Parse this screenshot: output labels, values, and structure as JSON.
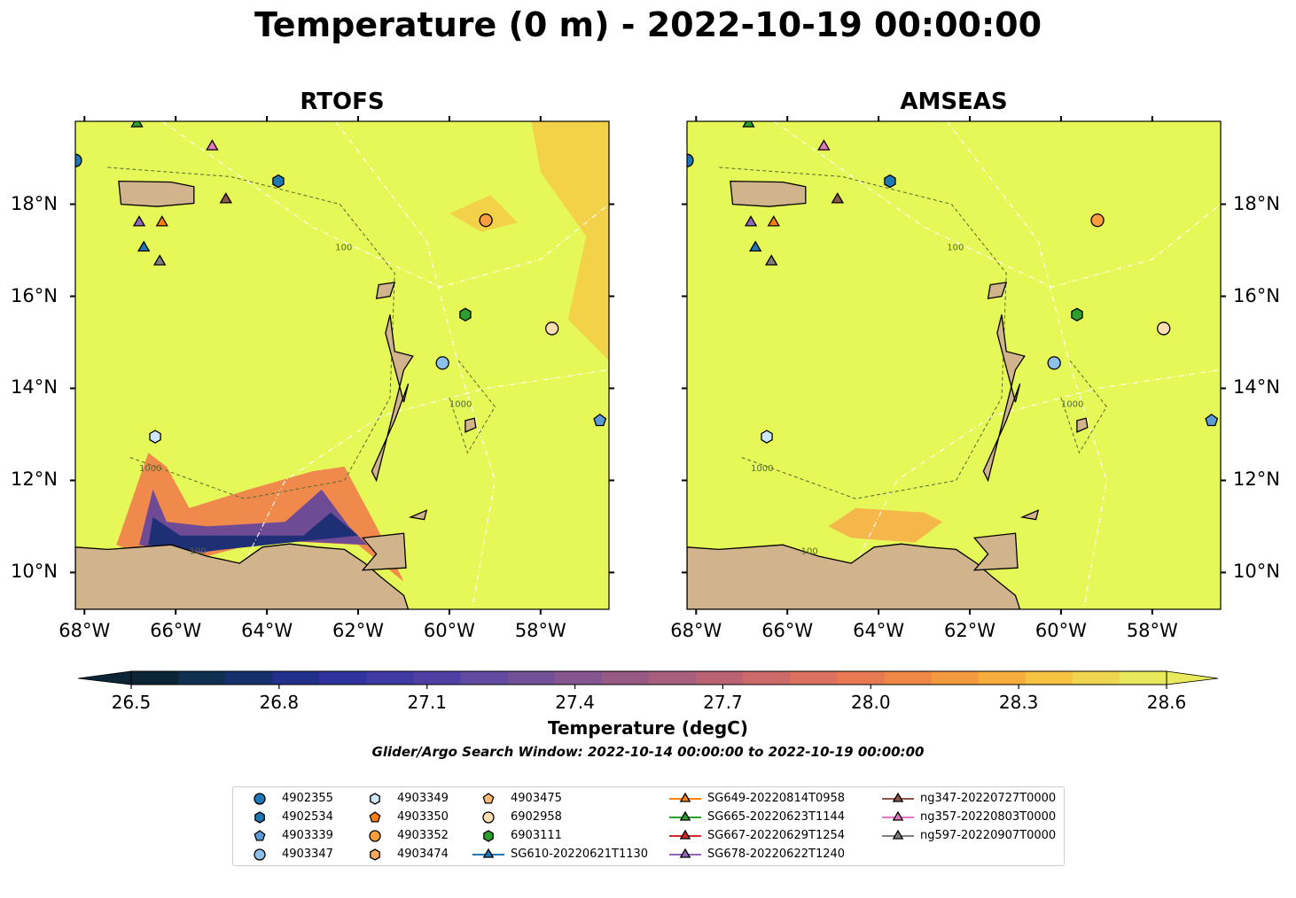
{
  "title": "Temperature (0 m) - 2022-10-19 00:00:00",
  "panels": [
    {
      "title": "RTOFS"
    },
    {
      "title": "AMSEAS"
    }
  ],
  "map": {
    "lon_range": [
      -68.2,
      -56.5
    ],
    "lat_range": [
      9.2,
      19.8
    ],
    "lon_ticks": [
      "68°W",
      "66°W",
      "64°W",
      "62°W",
      "60°W",
      "58°W"
    ],
    "lon_tick_values": [
      -68,
      -66,
      -64,
      -62,
      -60,
      -58
    ],
    "lat_ticks": [
      "18°N",
      "16°N",
      "14°N",
      "12°N",
      "10°N"
    ],
    "lat_tick_values": [
      18,
      16,
      14,
      12,
      10
    ],
    "contour_labels": [
      "100",
      "1000"
    ],
    "colors": {
      "ocean_base": "#e5f858",
      "land": "#d2b48c",
      "rtofs_warm_patch": "#f3d24a",
      "rtofs_cool_1": "#f08a4c",
      "rtofs_cool_2": "#6f4a95",
      "rtofs_cool_3": "#1f2f75",
      "amseas_patch": "#f6b74a"
    }
  },
  "colorbar": {
    "label": "Temperature (degC)",
    "ticks": [
      "26.5",
      "26.8",
      "27.1",
      "27.4",
      "27.7",
      "28.0",
      "28.3",
      "28.6"
    ],
    "tick_values": [
      26.5,
      26.8,
      27.1,
      27.4,
      27.7,
      28.0,
      28.3,
      28.6
    ],
    "range": [
      26.5,
      28.6
    ],
    "colors": [
      "#0b2436",
      "#10304f",
      "#162f6d",
      "#222f8b",
      "#30339d",
      "#403aa4",
      "#503fa4",
      "#614a9f",
      "#725198",
      "#84558e",
      "#965a85",
      "#a85f7e",
      "#bb6375",
      "#cc6a6a",
      "#db715e",
      "#e77a52",
      "#ef8846",
      "#f49a3e",
      "#f6ad3c",
      "#f5c242",
      "#f0d54e",
      "#e8e95d"
    ],
    "extend": "both"
  },
  "search_window": "Glider/Argo Search Window: 2022-10-14 00:00:00 to 2022-10-19 00:00:00",
  "observations": [
    {
      "id": "4902355",
      "lon": -68.2,
      "lat": 18.95
    },
    {
      "id": "4902534",
      "lon": -63.75,
      "lat": 18.5
    },
    {
      "id": "4903339",
      "lon": -56.7,
      "lat": 13.3
    },
    {
      "id": "4903347",
      "lon": -60.15,
      "lat": 14.55
    },
    {
      "id": "4903349",
      "lon": -66.45,
      "lat": 12.95
    },
    {
      "id": "4903352",
      "lon": -59.2,
      "lat": 17.65
    },
    {
      "id": "6902958",
      "lon": -57.75,
      "lat": 15.3
    },
    {
      "id": "6903111",
      "lon": -59.65,
      "lat": 15.6
    },
    {
      "id": "SG610-20220621T1130",
      "lon": -66.7,
      "lat": 17.05
    },
    {
      "id": "SG649-20220814T0958",
      "lon": -66.3,
      "lat": 17.6
    },
    {
      "id": "SG665-20220623T1144",
      "lon": -66.85,
      "lat": 19.75
    },
    {
      "id": "SG678-20220622T1240",
      "lon": -66.8,
      "lat": 17.6
    },
    {
      "id": "ng347-20220727T0000",
      "lon": -64.9,
      "lat": 18.1
    },
    {
      "id": "ng357-20220803T0000",
      "lon": -65.2,
      "lat": 19.25
    },
    {
      "id": "ng597-20220907T0000",
      "lon": -66.35,
      "lat": 16.75
    }
  ],
  "legend": [
    {
      "label": "4902355",
      "marker": "circle",
      "color": "#1f77b4"
    },
    {
      "label": "4902534",
      "marker": "hexagon",
      "color": "#1f77b4"
    },
    {
      "label": "4903339",
      "marker": "pentagon",
      "color": "#5b9bd5"
    },
    {
      "label": "4903347",
      "marker": "circle",
      "color": "#8ec1ea"
    },
    {
      "label": "4903349",
      "marker": "hexagon",
      "color": "#cfe7fb"
    },
    {
      "label": "4903350",
      "marker": "pentagon",
      "color": "#ff7f0e"
    },
    {
      "label": "4903352",
      "marker": "circle",
      "color": "#ff9e3d"
    },
    {
      "label": "4903474",
      "marker": "hexagon",
      "color": "#ffa860"
    },
    {
      "label": "4903475",
      "marker": "pentagon",
      "color": "#ffbb78"
    },
    {
      "label": "6902958",
      "marker": "circle",
      "color": "#ffddb0"
    },
    {
      "label": "6903111",
      "marker": "hexagon",
      "color": "#2ca02c"
    },
    {
      "label": "SG610-20220621T1130",
      "marker": "triangle-line",
      "color": "#1f77b4"
    },
    {
      "label": "SG649-20220814T0958",
      "marker": "triangle-line",
      "color": "#ff7f0e"
    },
    {
      "label": "SG665-20220623T1144",
      "marker": "triangle-line",
      "color": "#2ca02c"
    },
    {
      "label": "SG667-20220629T1254",
      "marker": "triangle-line",
      "color": "#d62728"
    },
    {
      "label": "SG678-20220622T1240",
      "marker": "triangle-line",
      "color": "#9467bd"
    },
    {
      "label": "ng347-20220727T0000",
      "marker": "triangle-line",
      "color": "#8c564b"
    },
    {
      "label": "ng357-20220803T0000",
      "marker": "triangle-line",
      "color": "#e377c2"
    },
    {
      "label": "ng597-20220907T0000",
      "marker": "triangle-line",
      "color": "#7f7f7f"
    }
  ]
}
